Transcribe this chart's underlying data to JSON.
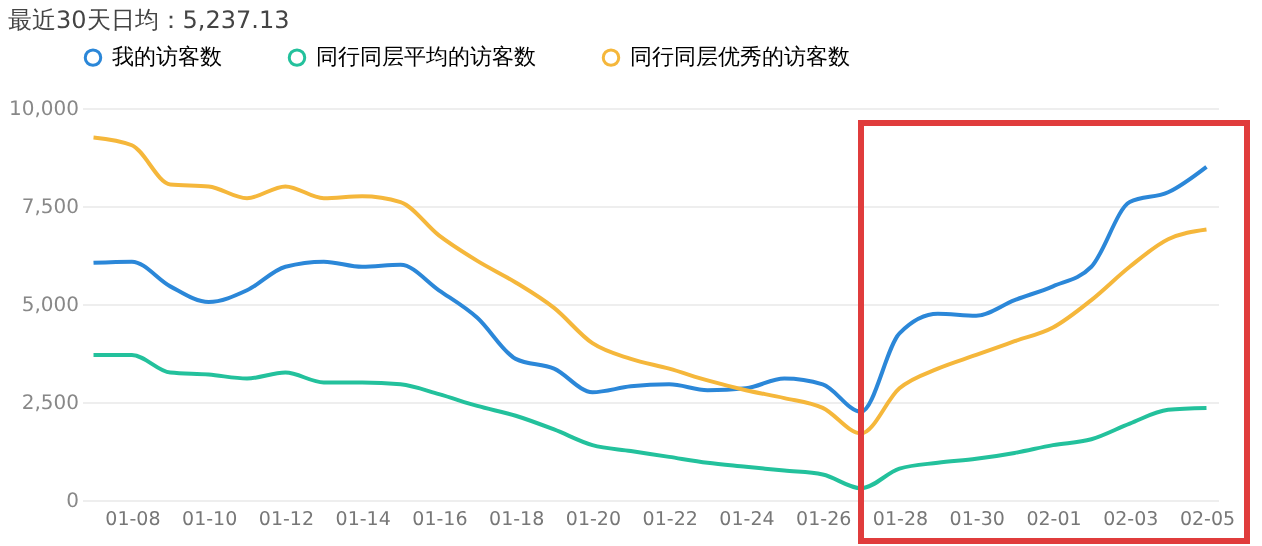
{
  "chart_data": {
    "type": "line",
    "title": "最近30天日均：5,237.13",
    "categories": [
      null,
      "01-08",
      null,
      "01-10",
      null,
      "01-12",
      null,
      "01-14",
      null,
      "01-16",
      null,
      "01-18",
      null,
      "01-20",
      null,
      "01-22",
      null,
      "01-24",
      null,
      "01-26",
      null,
      "01-28",
      null,
      "01-30",
      null,
      "02-01",
      null,
      "02-03",
      null,
      "02-05"
    ],
    "series": [
      {
        "name": "我的访客数",
        "color": "#2b87d8",
        "values": [
          6050,
          6080,
          5450,
          5050,
          5350,
          5950,
          6080,
          5950,
          6000,
          5350,
          4650,
          3600,
          3350,
          2750,
          2900,
          2950,
          2800,
          2850,
          3100,
          2950,
          2250,
          4250,
          4750,
          4700,
          5100,
          5450,
          5950,
          7600,
          7850,
          8500
        ]
      },
      {
        "name": "同行同层平均的访客数",
        "color": "#23c19c",
        "values": [
          3700,
          3700,
          3250,
          3200,
          3100,
          3250,
          3000,
          3000,
          2950,
          2700,
          2400,
          2150,
          1800,
          1400,
          1250,
          1100,
          950,
          850,
          750,
          650,
          300,
          800,
          950,
          1050,
          1200,
          1400,
          1550,
          1950,
          2300,
          2350
        ]
      },
      {
        "name": "同行同层优秀的访客数",
        "color": "#f5b73b",
        "values": [
          9250,
          9050,
          8050,
          8000,
          7700,
          8000,
          7700,
          7750,
          7600,
          6750,
          6100,
          5550,
          4900,
          4000,
          3600,
          3350,
          3050,
          2800,
          2600,
          2350,
          1700,
          2850,
          3350,
          3700,
          4050,
          4400,
          5100,
          5950,
          6650,
          6900
        ]
      }
    ],
    "ylim": [
      0,
      10000
    ],
    "yticks": [
      0,
      {
        "value": 2500,
        "label": "2,500"
      },
      {
        "value": 5000,
        "label": "5,000"
      },
      {
        "value": 7500,
        "label": "7,500"
      },
      {
        "value": 10000,
        "label": "10,000"
      }
    ],
    "grid": "y",
    "legend": "top left",
    "marker": "none",
    "line_style": "solid"
  }
}
